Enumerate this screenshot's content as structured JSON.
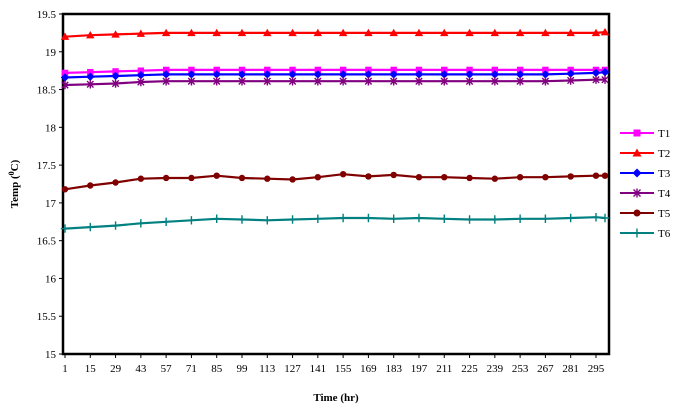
{
  "chart_data": {
    "type": "line",
    "xlabel": "Time (hr)",
    "ylabel_main": "Temp (",
    "ylabel_sup": "0",
    "ylabel_end": "C)",
    "ylim": [
      15,
      19.5
    ],
    "yticks": [
      "15",
      "15.5",
      "16",
      "16.5",
      "17",
      "17.5",
      "18",
      "18.5",
      "19",
      "19.5"
    ],
    "xlim": [
      1,
      300
    ],
    "xticks": [
      "1",
      "15",
      "29",
      "43",
      "57",
      "71",
      "85",
      "99",
      "113",
      "127",
      "141",
      "155",
      "169",
      "183",
      "197",
      "211",
      "225",
      "239",
      "253",
      "267",
      "281",
      "295"
    ],
    "grid": false,
    "legend_position": "right",
    "series": [
      {
        "name": "T1",
        "color": "#ff00ff",
        "marker": "square",
        "x": [
          1,
          15,
          29,
          43,
          57,
          71,
          85,
          99,
          113,
          127,
          141,
          155,
          169,
          183,
          197,
          211,
          225,
          239,
          253,
          267,
          281,
          295,
          300
        ],
        "values": [
          18.72,
          18.73,
          18.74,
          18.75,
          18.76,
          18.76,
          18.76,
          18.76,
          18.76,
          18.76,
          18.76,
          18.76,
          18.76,
          18.76,
          18.76,
          18.76,
          18.76,
          18.76,
          18.76,
          18.76,
          18.76,
          18.76,
          18.76
        ]
      },
      {
        "name": "T2",
        "color": "#ff0000",
        "marker": "triangle",
        "x": [
          1,
          15,
          29,
          43,
          57,
          71,
          85,
          99,
          113,
          127,
          141,
          155,
          169,
          183,
          197,
          211,
          225,
          239,
          253,
          267,
          281,
          295,
          300
        ],
        "values": [
          19.2,
          19.22,
          19.23,
          19.24,
          19.25,
          19.25,
          19.25,
          19.25,
          19.25,
          19.25,
          19.25,
          19.25,
          19.25,
          19.25,
          19.25,
          19.25,
          19.25,
          19.25,
          19.25,
          19.25,
          19.25,
          19.25,
          19.26
        ]
      },
      {
        "name": "T3",
        "color": "#0000ff",
        "marker": "diamond",
        "x": [
          1,
          15,
          29,
          43,
          57,
          71,
          85,
          99,
          113,
          127,
          141,
          155,
          169,
          183,
          197,
          211,
          225,
          239,
          253,
          267,
          281,
          295,
          300
        ],
        "values": [
          18.66,
          18.67,
          18.68,
          18.69,
          18.7,
          18.7,
          18.7,
          18.7,
          18.7,
          18.7,
          18.7,
          18.7,
          18.7,
          18.7,
          18.7,
          18.7,
          18.7,
          18.7,
          18.7,
          18.7,
          18.71,
          18.72,
          18.73
        ]
      },
      {
        "name": "T4",
        "color": "#800080",
        "marker": "star",
        "x": [
          1,
          15,
          29,
          43,
          57,
          71,
          85,
          99,
          113,
          127,
          141,
          155,
          169,
          183,
          197,
          211,
          225,
          239,
          253,
          267,
          281,
          295,
          300
        ],
        "values": [
          18.56,
          18.57,
          18.58,
          18.6,
          18.61,
          18.61,
          18.61,
          18.61,
          18.61,
          18.61,
          18.61,
          18.61,
          18.61,
          18.61,
          18.61,
          18.61,
          18.61,
          18.61,
          18.61,
          18.61,
          18.62,
          18.63,
          18.63
        ]
      },
      {
        "name": "T5",
        "color": "#800000",
        "marker": "circle",
        "x": [
          1,
          15,
          29,
          43,
          57,
          71,
          85,
          99,
          113,
          127,
          141,
          155,
          169,
          183,
          197,
          211,
          225,
          239,
          253,
          267,
          281,
          295,
          300
        ],
        "values": [
          17.18,
          17.23,
          17.27,
          17.32,
          17.33,
          17.33,
          17.36,
          17.33,
          17.32,
          17.31,
          17.34,
          17.38,
          17.35,
          17.37,
          17.34,
          17.34,
          17.33,
          17.32,
          17.34,
          17.34,
          17.35,
          17.36,
          17.36
        ]
      },
      {
        "name": "T6",
        "color": "#008080",
        "marker": "plus",
        "x": [
          1,
          15,
          29,
          43,
          57,
          71,
          85,
          99,
          113,
          127,
          141,
          155,
          169,
          183,
          197,
          211,
          225,
          239,
          253,
          267,
          281,
          295,
          300
        ],
        "values": [
          16.66,
          16.68,
          16.7,
          16.73,
          16.75,
          16.77,
          16.79,
          16.78,
          16.77,
          16.78,
          16.79,
          16.8,
          16.8,
          16.79,
          16.8,
          16.79,
          16.78,
          16.78,
          16.79,
          16.79,
          16.8,
          16.81,
          16.8
        ]
      }
    ]
  }
}
